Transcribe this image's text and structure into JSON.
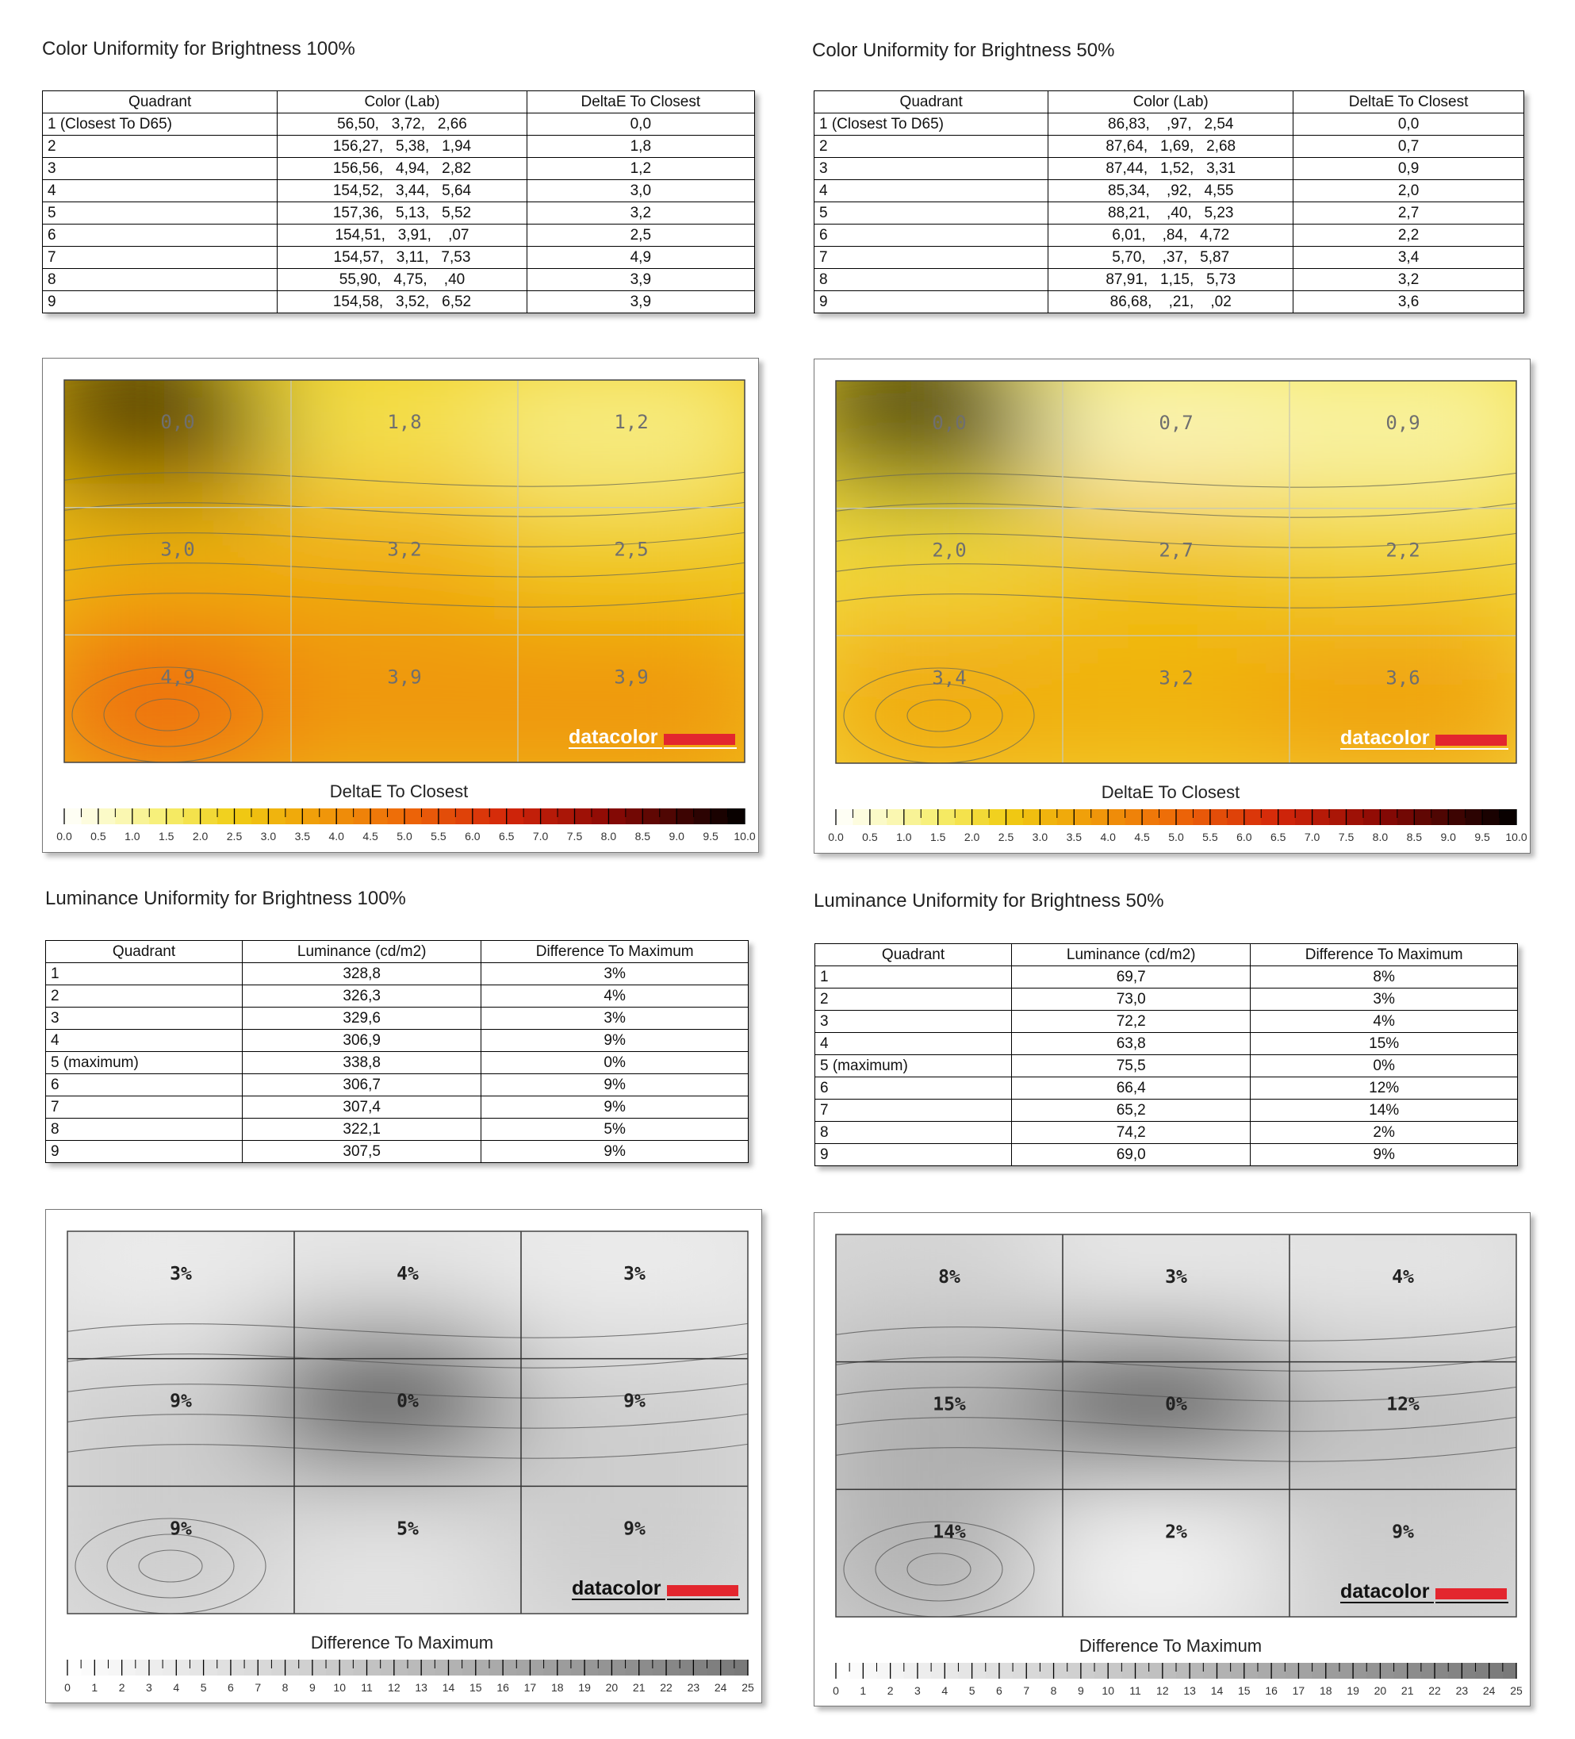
{
  "sections": [
    {
      "title": "Color Uniformity for Brightness 100%",
      "table": {
        "headers": [
          "Quadrant",
          "Color (Lab)",
          "DeltaE To Closest"
        ],
        "rows": [
          [
            "1 (Closest To D65)",
            "56,50,   3,72,   2,66",
            "0,0"
          ],
          [
            "2",
            "156,27,   5,38,   1,94",
            "1,8"
          ],
          [
            "3",
            "156,56,   4,94,   2,82",
            "1,2"
          ],
          [
            "4",
            "154,52,   3,44,   5,64",
            "3,0"
          ],
          [
            "5",
            "157,36,   5,13,   5,52",
            "3,2"
          ],
          [
            "6",
            "154,51,   3,91,    ,07",
            "2,5"
          ],
          [
            "7",
            "154,57,   3,11,   7,53",
            "4,9"
          ],
          [
            "8",
            "55,90,   4,75,    ,40",
            "3,9"
          ],
          [
            "9",
            "154,58,   3,52,   6,52",
            "3,9"
          ]
        ]
      }
    },
    {
      "title": "Color Uniformity for Brightness 50%",
      "table": {
        "headers": [
          "Quadrant",
          "Color (Lab)",
          "DeltaE To Closest"
        ],
        "rows": [
          [
            "1 (Closest To D65)",
            "86,83,    ,97,   2,54",
            "0,0"
          ],
          [
            "2",
            "87,64,   1,69,   2,68",
            "0,7"
          ],
          [
            "3",
            "87,44,   1,52,   3,31",
            "0,9"
          ],
          [
            "4",
            "85,34,    ,92,   4,55",
            "2,0"
          ],
          [
            "5",
            "88,21,    ,40,   5,23",
            "2,7"
          ],
          [
            "6",
            "6,01,    ,84,   4,72",
            "2,2"
          ],
          [
            "7",
            "5,70,    ,37,   5,87",
            "3,4"
          ],
          [
            "8",
            "87,91,   1,15,   5,73",
            "3,2"
          ],
          [
            "9",
            "86,68,    ,21,    ,02",
            "3,6"
          ]
        ]
      }
    },
    {
      "title": "Luminance Uniformity for Brightness 100%",
      "table": {
        "headers": [
          "Quadrant",
          "Luminance (cd/m2)",
          "Difference To Maximum"
        ],
        "rows": [
          [
            "1",
            "328,8",
            "3%"
          ],
          [
            "2",
            "326,3",
            "4%"
          ],
          [
            "3",
            "329,6",
            "3%"
          ],
          [
            "4",
            "306,9",
            "9%"
          ],
          [
            "5 (maximum)",
            "338,8",
            "0%"
          ],
          [
            "6",
            "306,7",
            "9%"
          ],
          [
            "7",
            "307,4",
            "9%"
          ],
          [
            "8",
            "322,1",
            "5%"
          ],
          [
            "9",
            "307,5",
            "9%"
          ]
        ]
      }
    },
    {
      "title": "Luminance Uniformity for Brightness 50%",
      "table": {
        "headers": [
          "Quadrant",
          "Luminance (cd/m2)",
          "Difference To Maximum"
        ],
        "rows": [
          [
            "1",
            "69,7",
            "8%"
          ],
          [
            "2",
            "73,0",
            "3%"
          ],
          [
            "3",
            "72,2",
            "4%"
          ],
          [
            "4",
            "63,8",
            "15%"
          ],
          [
            "5 (maximum)",
            "75,5",
            "0%"
          ],
          [
            "6",
            "66,4",
            "12%"
          ],
          [
            "7",
            "65,2",
            "14%"
          ],
          [
            "8",
            "74,2",
            "2%"
          ],
          [
            "9",
            "69,0",
            "9%"
          ]
        ]
      }
    }
  ],
  "brand": "datacolor",
  "chart_data": [
    {
      "type": "heatmap",
      "grid": "3x3",
      "values": [
        [
          0.0,
          1.8,
          1.2
        ],
        [
          3.0,
          3.2,
          2.5
        ],
        [
          4.9,
          3.9,
          3.9
        ]
      ],
      "cell_labels": [
        [
          "0,0",
          "1,8",
          "1,2"
        ],
        [
          "3,0",
          "3,2",
          "2,5"
        ],
        [
          "4,9",
          "3,9",
          "3,9"
        ]
      ],
      "colorbar_label": "DeltaE To Closest",
      "colorbar_range": [
        0,
        10
      ],
      "colorbar_ticks": [
        "0.0",
        "0.5",
        "1.0",
        "1.5",
        "2.0",
        "2.5",
        "3.0",
        "3.5",
        "4.0",
        "4.5",
        "5.0",
        "5.5",
        "6.0",
        "6.5",
        "7.0",
        "7.5",
        "8.0",
        "8.5",
        "9.0",
        "9.5",
        "10.0"
      ],
      "colorscale": "white-yellow-orange-red-black"
    },
    {
      "type": "heatmap",
      "grid": "3x3",
      "values": [
        [
          0.0,
          0.7,
          0.9
        ],
        [
          2.0,
          2.7,
          2.2
        ],
        [
          3.4,
          3.2,
          3.6
        ]
      ],
      "cell_labels": [
        [
          "0,0",
          "0,7",
          "0,9"
        ],
        [
          "2,0",
          "2,7",
          "2,2"
        ],
        [
          "3,4",
          "3,2",
          "3,6"
        ]
      ],
      "colorbar_label": "DeltaE To Closest",
      "colorbar_range": [
        0,
        10
      ],
      "colorbar_ticks": [
        "0.0",
        "0.5",
        "1.0",
        "1.5",
        "2.0",
        "2.5",
        "3.0",
        "3.5",
        "4.0",
        "4.5",
        "5.0",
        "5.5",
        "6.0",
        "6.5",
        "7.0",
        "7.5",
        "8.0",
        "8.5",
        "9.0",
        "9.5",
        "10.0"
      ],
      "colorscale": "white-yellow-orange-red-black"
    },
    {
      "type": "heatmap",
      "grid": "3x3",
      "values": [
        [
          3,
          4,
          3
        ],
        [
          9,
          0,
          9
        ],
        [
          9,
          5,
          9
        ]
      ],
      "cell_labels": [
        [
          "3%",
          "4%",
          "3%"
        ],
        [
          "9%",
          "0%",
          "9%"
        ],
        [
          "9%",
          "5%",
          "9%"
        ]
      ],
      "colorbar_label": "Difference To Maximum",
      "colorbar_range": [
        0,
        25
      ],
      "colorbar_ticks": [
        "0",
        "1",
        "2",
        "3",
        "4",
        "5",
        "6",
        "7",
        "8",
        "9",
        "10",
        "11",
        "12",
        "13",
        "14",
        "15",
        "16",
        "17",
        "18",
        "19",
        "20",
        "21",
        "22",
        "23",
        "24",
        "25"
      ],
      "colorscale": "white-gray"
    },
    {
      "type": "heatmap",
      "grid": "3x3",
      "values": [
        [
          8,
          3,
          4
        ],
        [
          15,
          0,
          12
        ],
        [
          14,
          2,
          9
        ]
      ],
      "cell_labels": [
        [
          "8%",
          "3%",
          "4%"
        ],
        [
          "15%",
          "0%",
          "12%"
        ],
        [
          "14%",
          "2%",
          "9%"
        ]
      ],
      "colorbar_label": "Difference To Maximum",
      "colorbar_range": [
        0,
        25
      ],
      "colorbar_ticks": [
        "0",
        "1",
        "2",
        "3",
        "4",
        "5",
        "6",
        "7",
        "8",
        "9",
        "10",
        "11",
        "12",
        "13",
        "14",
        "15",
        "16",
        "17",
        "18",
        "19",
        "20",
        "21",
        "22",
        "23",
        "24",
        "25"
      ],
      "colorscale": "white-gray"
    }
  ]
}
